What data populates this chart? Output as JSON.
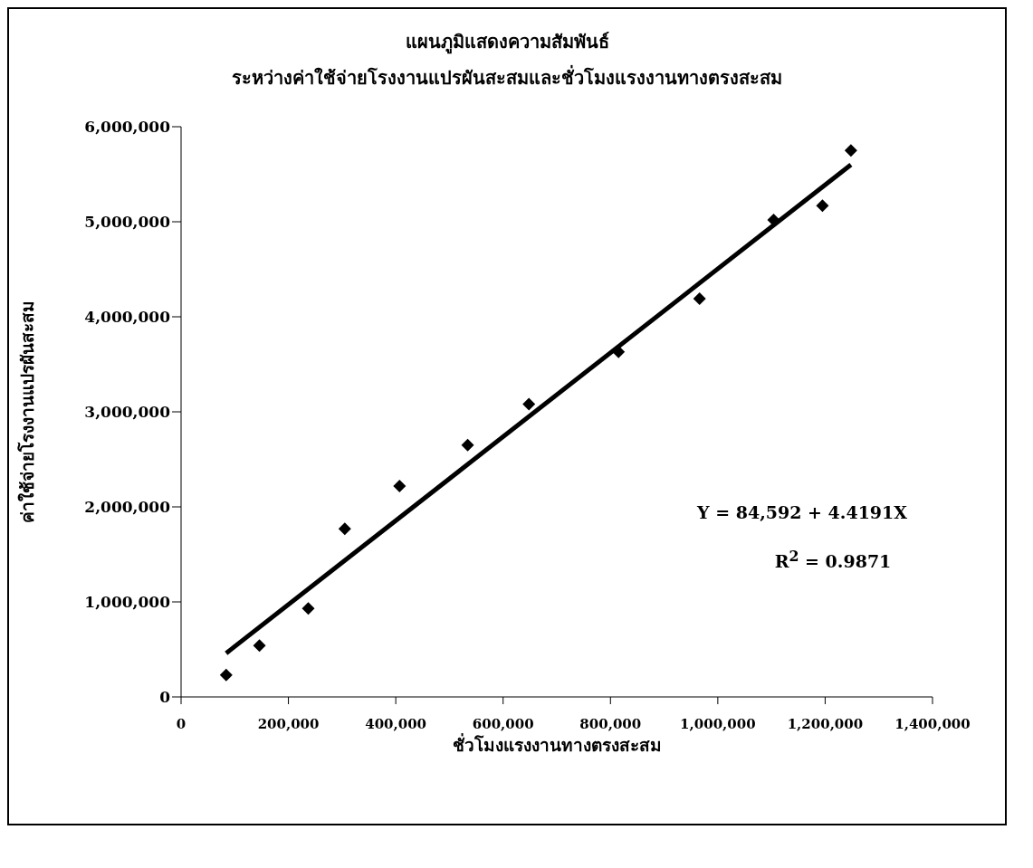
{
  "chart_data": {
    "type": "scatter",
    "title": "แผนภูมิแสดงความสัมพันธ์",
    "subtitle": "ระหว่างค่าใช้จ่ายโรงงานแปรผันสะสมและชั่วโมงแรงงานทางตรงสะสม",
    "xlabel": "ชั่วโมงแรงงานทางตรงสะสม",
    "ylabel": "ค่าใช้จ่ายโรงงานแปรผันสะสม",
    "x": [
      84000,
      146000,
      237000,
      305000,
      407000,
      534000,
      648000,
      815000,
      966000,
      1104000,
      1195000,
      1248000
    ],
    "series": [
      {
        "color": "#000000",
        "marker": "diamond",
        "values": [
          230000,
          540000,
          930000,
          1770000,
          2220000,
          2650000,
          3080000,
          3630000,
          4190000,
          5020000,
          5170000,
          5750000
        ]
      },
      {
        "type": "line",
        "color": "#000000",
        "marker": "none",
        "line_style": "solid",
        "x": [
          84000,
          1248000
        ],
        "values": [
          460000,
          5600000
        ]
      }
    ],
    "xlim": [
      0,
      1400000
    ],
    "xticks": [
      0,
      {
        "value": 200000,
        "label": "200,000"
      },
      {
        "value": 400000,
        "label": "400,000"
      },
      {
        "value": 600000,
        "label": "600,000"
      },
      {
        "value": 800000,
        "label": "800,000"
      },
      {
        "value": 1000000,
        "label": "1,000,000"
      },
      {
        "value": 1200000,
        "label": "1,200,000"
      },
      {
        "value": 1400000,
        "label": "1,400,000"
      }
    ],
    "ylim": [
      0,
      6000000
    ],
    "yticks": [
      0,
      {
        "value": 1000000,
        "label": "1,000,000"
      },
      {
        "value": 2000000,
        "label": "2,000,000"
      },
      {
        "value": 3000000,
        "label": "3,000,000"
      },
      {
        "value": 4000000,
        "label": "4,000,000"
      },
      {
        "value": 5000000,
        "label": "5,000,000"
      },
      {
        "value": 6000000,
        "label": "6,000,000"
      }
    ],
    "annotations": [
      "Y = 84,592 + 4.4191X",
      "R$^{2}$ = 0.9871"
    ],
    "grid": false
  }
}
